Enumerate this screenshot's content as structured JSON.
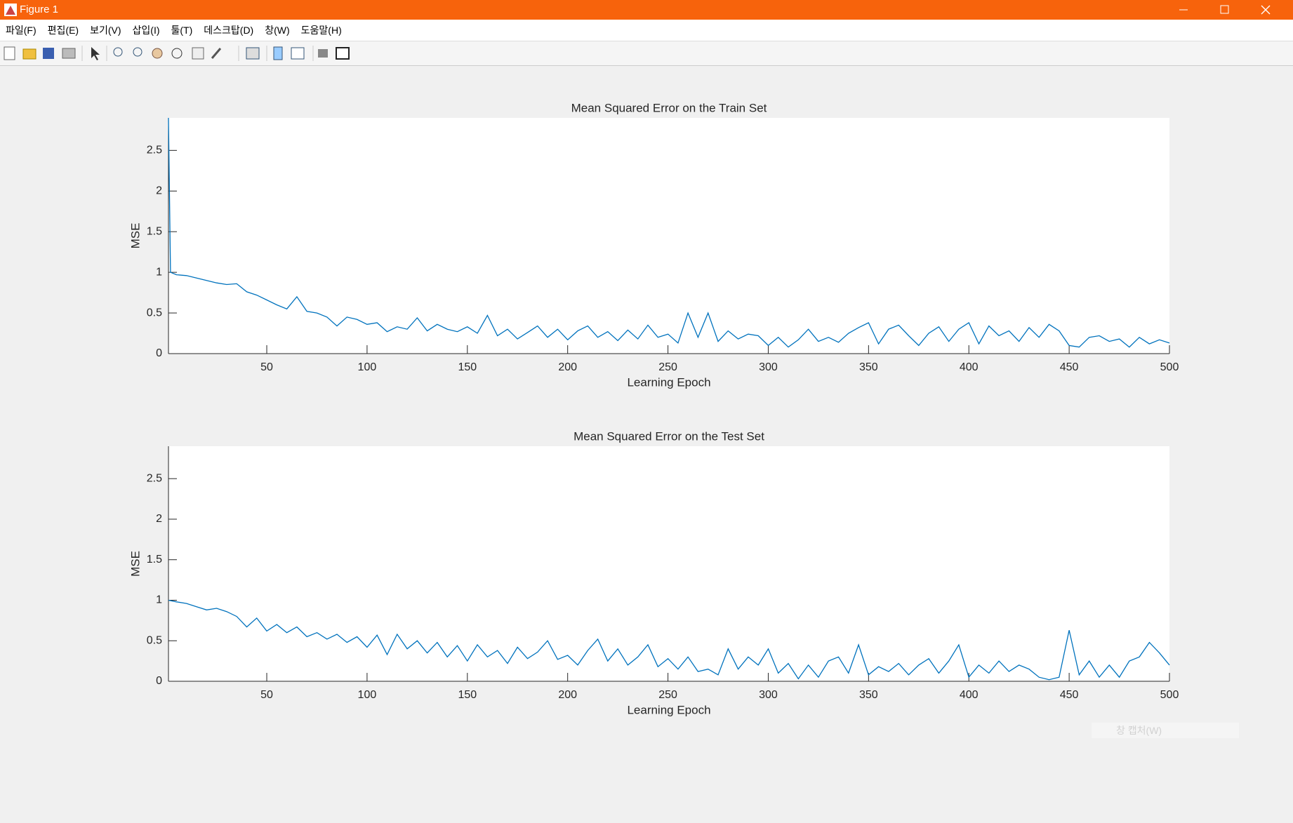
{
  "window": {
    "title": "Figure 1",
    "menu": [
      "파일(F)",
      "편집(E)",
      "보기(V)",
      "삽입(I)",
      "툴(T)",
      "데스크탑(D)",
      "창(W)",
      "도움말(H)"
    ],
    "overlay": "창 캡처(W)"
  },
  "chart_data": [
    {
      "type": "line",
      "title": "Mean Squared Error on the Train Set",
      "xlabel": "Learning Epoch",
      "ylabel": "MSE",
      "color": "#0072bd",
      "xlim": [
        1,
        500
      ],
      "xticks": [
        50,
        100,
        150,
        200,
        250,
        300,
        350,
        400,
        450,
        500
      ],
      "ylim": [
        0,
        2.9
      ],
      "yticks": [
        0,
        0.5,
        1,
        1.5,
        2,
        2.5
      ],
      "x": [
        1,
        2,
        5,
        10,
        15,
        20,
        25,
        30,
        35,
        40,
        45,
        50,
        55,
        60,
        65,
        70,
        75,
        80,
        85,
        90,
        95,
        100,
        105,
        110,
        115,
        120,
        125,
        130,
        135,
        140,
        145,
        150,
        155,
        160,
        165,
        170,
        175,
        180,
        185,
        190,
        195,
        200,
        205,
        210,
        215,
        220,
        225,
        230,
        235,
        240,
        245,
        250,
        255,
        260,
        265,
        270,
        275,
        280,
        285,
        290,
        295,
        300,
        305,
        310,
        315,
        320,
        325,
        330,
        335,
        340,
        345,
        350,
        355,
        360,
        365,
        370,
        375,
        380,
        385,
        390,
        395,
        400,
        405,
        410,
        415,
        420,
        425,
        430,
        435,
        440,
        445,
        450,
        455,
        460,
        465,
        470,
        475,
        480,
        485,
        490,
        495,
        500
      ],
      "values": [
        2.9,
        1.0,
        0.97,
        0.96,
        0.93,
        0.9,
        0.87,
        0.85,
        0.86,
        0.76,
        0.72,
        0.66,
        0.6,
        0.55,
        0.7,
        0.52,
        0.5,
        0.45,
        0.34,
        0.45,
        0.42,
        0.36,
        0.38,
        0.27,
        0.33,
        0.3,
        0.44,
        0.28,
        0.36,
        0.3,
        0.27,
        0.33,
        0.25,
        0.47,
        0.22,
        0.3,
        0.18,
        0.26,
        0.34,
        0.2,
        0.3,
        0.17,
        0.28,
        0.34,
        0.2,
        0.27,
        0.16,
        0.29,
        0.18,
        0.35,
        0.2,
        0.24,
        0.13,
        0.5,
        0.2,
        0.5,
        0.15,
        0.28,
        0.18,
        0.24,
        0.22,
        0.1,
        0.2,
        0.08,
        0.17,
        0.3,
        0.15,
        0.2,
        0.14,
        0.25,
        0.32,
        0.38,
        0.12,
        0.3,
        0.35,
        0.22,
        0.1,
        0.25,
        0.33,
        0.15,
        0.3,
        0.38,
        0.12,
        0.34,
        0.22,
        0.28,
        0.15,
        0.32,
        0.2,
        0.36,
        0.28,
        0.1,
        0.08,
        0.2,
        0.22,
        0.15,
        0.18,
        0.08,
        0.2,
        0.12,
        0.17,
        0.13
      ]
    },
    {
      "type": "line",
      "title": "Mean Squared Error on the Test Set",
      "xlabel": "Learning Epoch",
      "ylabel": "MSE",
      "color": "#0072bd",
      "xlim": [
        1,
        500
      ],
      "xticks": [
        50,
        100,
        150,
        200,
        250,
        300,
        350,
        400,
        450,
        500
      ],
      "ylim": [
        0,
        2.9
      ],
      "yticks": [
        0,
        0.5,
        1,
        1.5,
        2,
        2.5
      ],
      "x": [
        1,
        5,
        10,
        15,
        20,
        25,
        30,
        35,
        40,
        45,
        50,
        55,
        60,
        65,
        70,
        75,
        80,
        85,
        90,
        95,
        100,
        105,
        110,
        115,
        120,
        125,
        130,
        135,
        140,
        145,
        150,
        155,
        160,
        165,
        170,
        175,
        180,
        185,
        190,
        195,
        200,
        205,
        210,
        215,
        220,
        225,
        230,
        235,
        240,
        245,
        250,
        255,
        260,
        265,
        270,
        275,
        280,
        285,
        290,
        295,
        300,
        305,
        310,
        315,
        320,
        325,
        330,
        335,
        340,
        345,
        350,
        355,
        360,
        365,
        370,
        375,
        380,
        385,
        390,
        395,
        400,
        405,
        410,
        415,
        420,
        425,
        430,
        435,
        440,
        445,
        450,
        455,
        460,
        465,
        470,
        475,
        480,
        485,
        490,
        495,
        500
      ],
      "values": [
        1.0,
        0.98,
        0.96,
        0.92,
        0.88,
        0.9,
        0.86,
        0.8,
        0.67,
        0.78,
        0.62,
        0.7,
        0.6,
        0.67,
        0.55,
        0.6,
        0.52,
        0.58,
        0.48,
        0.55,
        0.42,
        0.57,
        0.33,
        0.58,
        0.4,
        0.5,
        0.35,
        0.48,
        0.3,
        0.44,
        0.25,
        0.45,
        0.3,
        0.38,
        0.22,
        0.42,
        0.28,
        0.36,
        0.5,
        0.27,
        0.32,
        0.2,
        0.38,
        0.52,
        0.25,
        0.4,
        0.2,
        0.3,
        0.45,
        0.18,
        0.28,
        0.15,
        0.3,
        0.12,
        0.15,
        0.08,
        0.4,
        0.15,
        0.3,
        0.2,
        0.4,
        0.1,
        0.22,
        0.03,
        0.2,
        0.05,
        0.25,
        0.3,
        0.1,
        0.45,
        0.08,
        0.18,
        0.12,
        0.22,
        0.08,
        0.2,
        0.28,
        0.1,
        0.25,
        0.45,
        0.05,
        0.2,
        0.1,
        0.25,
        0.12,
        0.2,
        0.15,
        0.05,
        0.02,
        0.05,
        0.63,
        0.08,
        0.25,
        0.05,
        0.2,
        0.05,
        0.25,
        0.3,
        0.48,
        0.35,
        0.2
      ]
    }
  ]
}
